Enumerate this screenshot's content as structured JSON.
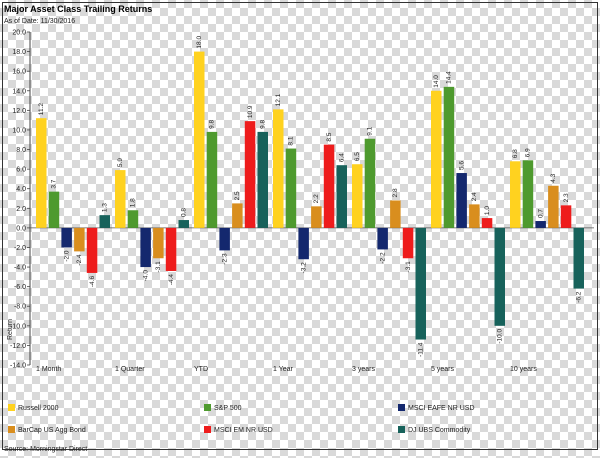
{
  "chart_data": {
    "type": "bar",
    "title": "Major Asset Class Trailing Returns",
    "subtitle": "As of Date: 11/30/2016",
    "ylabel": "Return",
    "xlabel": "",
    "ylim": [
      -14.0,
      20.0
    ],
    "ytick_step": 2.0,
    "categories": [
      "1 Month",
      "1 Quarter",
      "YTD",
      "1 Year",
      "3 years",
      "5 years",
      "10 years"
    ],
    "series": [
      {
        "name": "Russell 2000",
        "color": "#ffd21f",
        "values": [
          11.2,
          5.9,
          18.0,
          12.1,
          6.5,
          14.0,
          6.8
        ]
      },
      {
        "name": "S&P 500",
        "color": "#4e9a2e",
        "values": [
          3.7,
          1.8,
          9.8,
          8.1,
          9.1,
          14.4,
          6.9
        ]
      },
      {
        "name": "MSCI EAFE NR USD",
        "color": "#14286e",
        "values": [
          -2.0,
          -4.0,
          -2.3,
          -3.2,
          -2.2,
          5.6,
          0.7
        ]
      },
      {
        "name": "BarCap US Agg Bond",
        "color": "#d98e1e",
        "values": [
          -2.4,
          -3.1,
          2.5,
          2.2,
          2.8,
          2.4,
          4.3
        ]
      },
      {
        "name": "MSCI EM NR USD",
        "color": "#ee1c1c",
        "values": [
          -4.6,
          -4.4,
          10.9,
          8.5,
          -3.1,
          1.0,
          2.3
        ]
      },
      {
        "name": "DJ UBS Commodity",
        "color": "#17625b",
        "values": [
          1.3,
          0.8,
          9.8,
          6.4,
          -11.4,
          -10.0,
          -6.2
        ]
      }
    ],
    "legend_position": "bottom",
    "grid": false
  },
  "footer": {
    "source": "Source: Morningstar Direct"
  }
}
